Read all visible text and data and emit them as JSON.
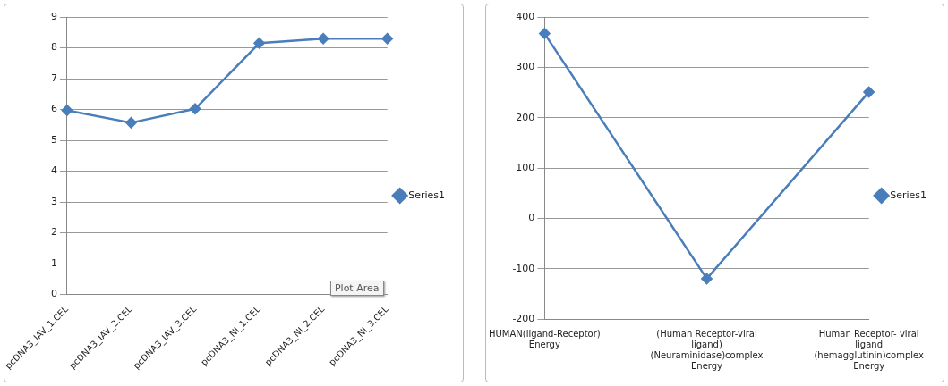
{
  "chart_data": [
    {
      "type": "line",
      "categories": [
        "pcDNA3_IAV_1.CEL",
        "pcDNA3_IAV_2.CEL",
        "pcDNA3_IAV_3.CEL",
        "pcDNA3_NI_1.CEL",
        "pcDNA3_NI_2.CEL",
        "pcDNA3_NI_3.CEL"
      ],
      "series": [
        {
          "name": "Series1",
          "color": "#4a7ebb",
          "values": [
            5.97,
            5.57,
            6.02,
            8.15,
            8.3,
            8.3
          ]
        }
      ],
      "ylim": [
        0,
        9
      ],
      "yticks": [
        0,
        1,
        2,
        3,
        4,
        5,
        6,
        7,
        8,
        9
      ],
      "grid": "y",
      "legend": "right",
      "marker": "diamond",
      "line_style": "solid",
      "annotations": [
        "Plot Area"
      ]
    },
    {
      "type": "line",
      "categories": [
        "HUMAN(ligand-Receptor) Energy",
        "(Human Receptor-viral ligand) (Neuraminidase)complex Energy",
        "Human Receptor- viral ligand (hemagglutinin)complex Energy"
      ],
      "series": [
        {
          "name": "Series1",
          "color": "#4a7ebb",
          "values": [
            367,
            -120,
            251
          ]
        }
      ],
      "ylim": [
        -200,
        400
      ],
      "yticks": [
        -200,
        -100,
        0,
        100,
        200,
        300,
        400
      ],
      "grid": "y",
      "legend": "right",
      "marker": "diamond",
      "line_style": "solid"
    }
  ]
}
